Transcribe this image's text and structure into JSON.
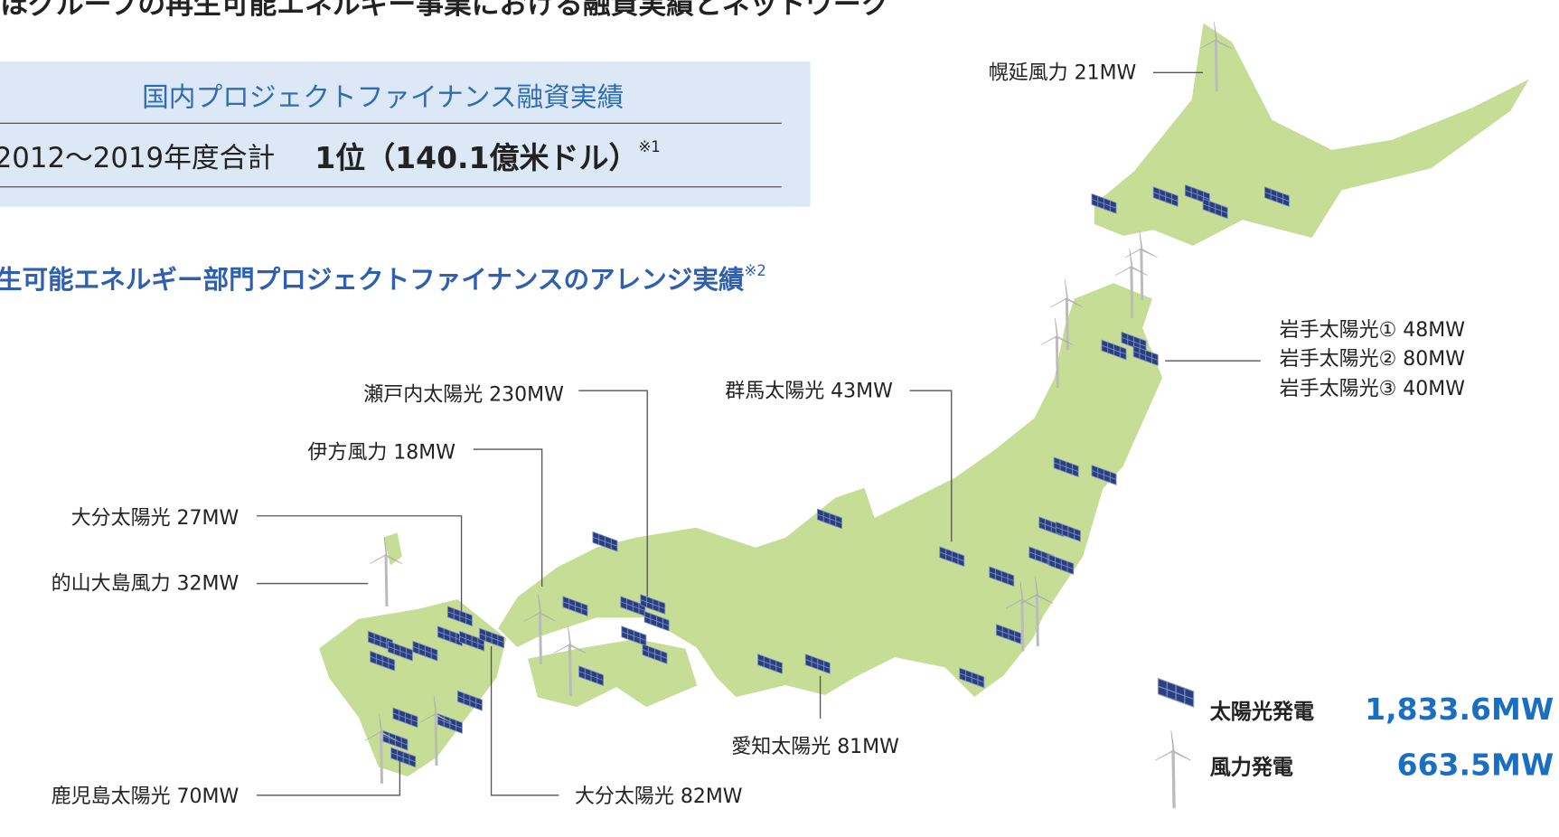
{
  "title": "ほグループの再生可能エネルギー事業における融資実績とネットワーク",
  "summary": {
    "heading": "国内プロジェクトファイナンス融資実績",
    "period": "2012～2019年度合計",
    "rank": "1位（140.1億米ドル）",
    "note": "※1"
  },
  "section": {
    "heading": "生可能エネルギー部門プロジェクトファイナンスのアレンジ実績",
    "note": "※2"
  },
  "projects": [
    "幌延風力 21MW",
    "岩手太陽光① 48MW",
    "岩手太陽光② 80MW",
    "岩手太陽光③ 40MW",
    "瀬戸内太陽光 230MW",
    "群馬太陽光 43MW",
    "伊方風力 18MW",
    "大分太陽光 27MW",
    "的山大島風力 32MW",
    "愛知太陽光 81MW",
    "鹿児島太陽光 70MW",
    "大分太陽光 82MW"
  ],
  "legend": [
    {
      "label": "太陽光発電",
      "value": "1,833.6MW"
    },
    {
      "label": "風力発電",
      "value": "663.5MW"
    }
  ]
}
